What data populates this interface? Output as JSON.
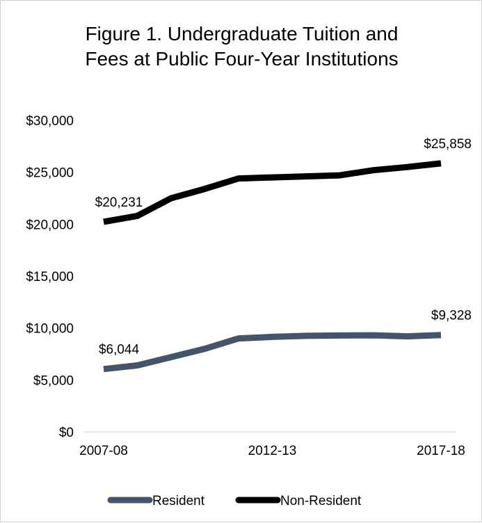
{
  "chart_data": {
    "type": "line",
    "title_lines": [
      "Figure 1. Undergraduate Tuition and",
      "Fees at Public Four-Year Institutions"
    ],
    "x": [
      "2007-08",
      "2008-09",
      "2009-10",
      "2010-11",
      "2011-12",
      "2012-13",
      "2013-14",
      "2014-15",
      "2015-16",
      "2016-17",
      "2017-18"
    ],
    "x_tick_labels": [
      "2007-08",
      "2012-13",
      "2017-18"
    ],
    "y_tick_labels": [
      "$0",
      "$5,000",
      "$10,000",
      "$15,000",
      "$20,000",
      "$25,000",
      "$30,000"
    ],
    "ylim": [
      0,
      30000
    ],
    "grid": false,
    "legend_position": "bottom",
    "series": [
      {
        "name": "Resident",
        "color": "#44546a",
        "values": [
          6044,
          6400,
          7200,
          8000,
          9000,
          9150,
          9250,
          9280,
          9300,
          9200,
          9328
        ],
        "data_labels": [
          {
            "index": 0,
            "text": "$6,044"
          },
          {
            "index": 10,
            "text": "$9,328"
          }
        ]
      },
      {
        "name": "Non-Resident",
        "color": "#000000",
        "values": [
          20231,
          20800,
          22500,
          23400,
          24400,
          24500,
          24600,
          24700,
          25200,
          25500,
          25858
        ],
        "data_labels": [
          {
            "index": 0,
            "text": "$20,231"
          },
          {
            "index": 10,
            "text": "$25,858"
          }
        ]
      }
    ]
  }
}
